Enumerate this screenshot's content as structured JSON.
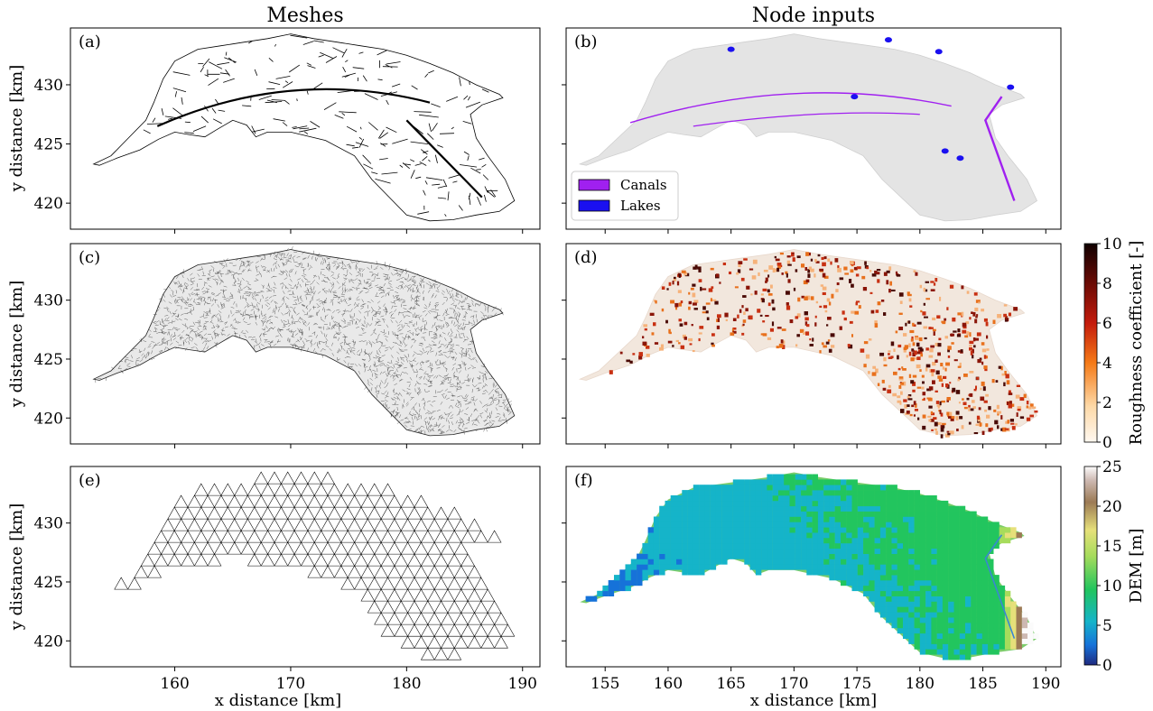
{
  "figure": {
    "col_titles": [
      "Meshes",
      "Node inputs"
    ],
    "xlabel": "x distance [km]",
    "ylabel": "y distance [km]"
  },
  "chart_data": [
    {
      "id": "a",
      "label": "(a)",
      "type": "map",
      "content": "street network mesh",
      "xlim": [
        151,
        191.5
      ],
      "ylim": [
        417.8,
        434.8
      ],
      "xticks": [
        160,
        170,
        180,
        190
      ],
      "yticks": [
        420,
        425,
        430
      ],
      "show_xticklabels": false,
      "show_yticklabels": true
    },
    {
      "id": "b",
      "label": "(b)",
      "type": "map",
      "content": "canals and lakes",
      "xlim": [
        151.9,
        191.2
      ],
      "ylim": [
        417.8,
        434.8
      ],
      "xticks": [
        155,
        160,
        165,
        170,
        175,
        180,
        185,
        190
      ],
      "yticks": [
        420,
        425,
        430
      ],
      "show_xticklabels": false,
      "show_yticklabels": false,
      "legend": [
        {
          "name": "Canals",
          "color": "#a020f0"
        },
        {
          "name": "Lakes",
          "color": "#1a10f0"
        }
      ],
      "legend_placement": "lower-left"
    },
    {
      "id": "c",
      "label": "(c)",
      "type": "map",
      "content": "fine triangular mesh",
      "xlim": [
        151,
        191.5
      ],
      "ylim": [
        417.8,
        434.8
      ],
      "xticks": [
        160,
        170,
        180,
        190
      ],
      "yticks": [
        420,
        425,
        430
      ],
      "show_xticklabels": false,
      "show_yticklabels": true
    },
    {
      "id": "d",
      "label": "(d)",
      "type": "heatmap",
      "content": "roughness coefficient",
      "xlim": [
        151.9,
        191.2
      ],
      "ylim": [
        417.8,
        434.8
      ],
      "xticks": [
        155,
        160,
        165,
        170,
        175,
        180,
        185,
        190
      ],
      "yticks": [
        420,
        425,
        430
      ],
      "show_xticklabels": false,
      "show_yticklabels": false,
      "colorbar": {
        "label": "Roughness coefficient [-]",
        "range": [
          0,
          10
        ],
        "ticks": [
          0,
          2,
          4,
          6,
          8,
          10
        ]
      }
    },
    {
      "id": "e",
      "label": "(e)",
      "type": "map",
      "content": "coarse triangular mesh",
      "xlim": [
        151,
        191.5
      ],
      "ylim": [
        417.8,
        434.8
      ],
      "xticks": [
        160,
        170,
        180,
        190
      ],
      "yticks": [
        420,
        425,
        430
      ],
      "show_xticklabels": true,
      "show_yticklabels": true
    },
    {
      "id": "f",
      "label": "(f)",
      "type": "heatmap",
      "content": "digital elevation model",
      "xlim": [
        151.9,
        191.2
      ],
      "ylim": [
        417.8,
        434.8
      ],
      "xticks": [
        155,
        160,
        165,
        170,
        175,
        180,
        185,
        190
      ],
      "yticks": [
        420,
        425,
        430
      ],
      "show_xticklabels": true,
      "show_yticklabels": false,
      "colorbar": {
        "label": "DEM [m]",
        "range": [
          0,
          25
        ],
        "ticks": [
          0,
          5,
          10,
          15,
          20,
          25
        ]
      }
    }
  ]
}
